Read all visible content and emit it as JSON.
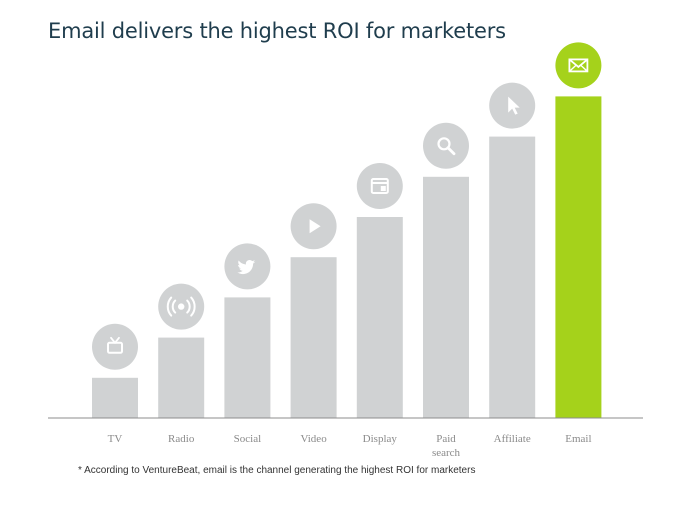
{
  "title": "Email delivers the highest ROI for marketers",
  "footnote": "* According to VentureBeat, email is the channel generating the highest ROI for marketers",
  "colors": {
    "bar": "#d0d2d3",
    "highlight": "#a5d21b",
    "icon_circle": "#d0d2d3",
    "icon_glyph": "#ffffff",
    "axis": "#8c8c8c",
    "title": "#1f3d4d"
  },
  "chart_data": {
    "type": "bar",
    "title": "Email delivers the highest ROI for marketers",
    "xlabel": "",
    "ylabel": "",
    "categories": [
      "TV",
      "Radio",
      "Social",
      "Video",
      "Display",
      "Paid search",
      "Affiliate",
      "Email"
    ],
    "category_labels": [
      [
        "TV"
      ],
      [
        "Radio"
      ],
      [
        "Social"
      ],
      [
        "Video"
      ],
      [
        "Display"
      ],
      [
        "Paid",
        "search"
      ],
      [
        "Affiliate"
      ],
      [
        "Email"
      ]
    ],
    "values": [
      1,
      2,
      3,
      4,
      5,
      6,
      7,
      8
    ],
    "ylim": [
      0,
      8
    ],
    "grid": false,
    "highlight_category": "Email",
    "icons": [
      "tv-icon",
      "radio-icon",
      "twitter-icon",
      "play-icon",
      "display-icon",
      "search-icon",
      "cursor-icon",
      "email-icon"
    ]
  }
}
